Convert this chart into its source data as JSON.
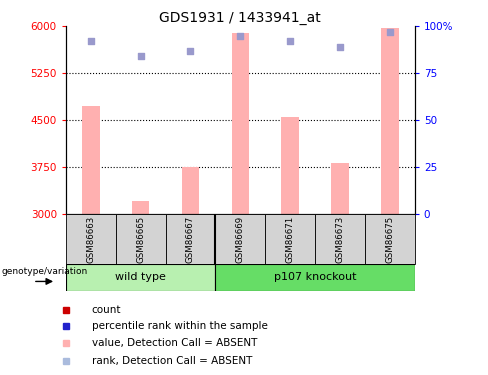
{
  "title": "GDS1931 / 1433941_at",
  "samples": [
    "GSM86663",
    "GSM86665",
    "GSM86667",
    "GSM86669",
    "GSM86671",
    "GSM86673",
    "GSM86675"
  ],
  "bar_values": [
    4720,
    3200,
    3750,
    5900,
    4550,
    3820,
    5980
  ],
  "rank_values": [
    92,
    84,
    87,
    95,
    92,
    89,
    97
  ],
  "ylim_left": [
    3000,
    6000
  ],
  "ylim_right": [
    0,
    100
  ],
  "yticks_left": [
    3000,
    3750,
    4500,
    5250,
    6000
  ],
  "yticks_right": [
    0,
    25,
    50,
    75,
    100
  ],
  "bar_color": "#ffb0b0",
  "rank_color": "#9999cc",
  "sample_bg_color": "#d3d3d3",
  "wt_color": "#b8f0b0",
  "ko_color": "#66dd66",
  "wt_count": 3,
  "ko_count": 4,
  "legend_items": [
    {
      "marker_color": "#cc0000",
      "label": "count"
    },
    {
      "marker_color": "#2222cc",
      "label": "percentile rank within the sample"
    },
    {
      "marker_color": "#ffb0b0",
      "label": "value, Detection Call = ABSENT"
    },
    {
      "marker_color": "#aabbdd",
      "label": "rank, Detection Call = ABSENT"
    }
  ]
}
